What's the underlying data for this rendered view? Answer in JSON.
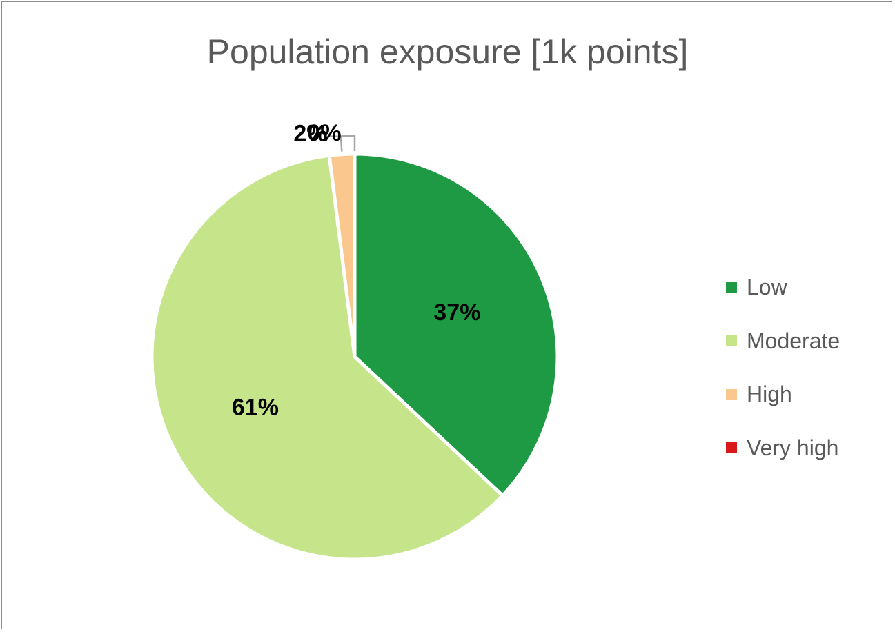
{
  "chart_data": {
    "type": "pie",
    "title": "Population exposure [1k points]",
    "categories": [
      "Low",
      "Moderate",
      "High",
      "Very high"
    ],
    "values": [
      37,
      61,
      2,
      0
    ],
    "labels": [
      "37%",
      "61%",
      "2%",
      "0%"
    ],
    "colors": [
      "#1e9a44",
      "#c6e58b",
      "#fac88f",
      "#d7191c"
    ],
    "legend_position": "right"
  }
}
